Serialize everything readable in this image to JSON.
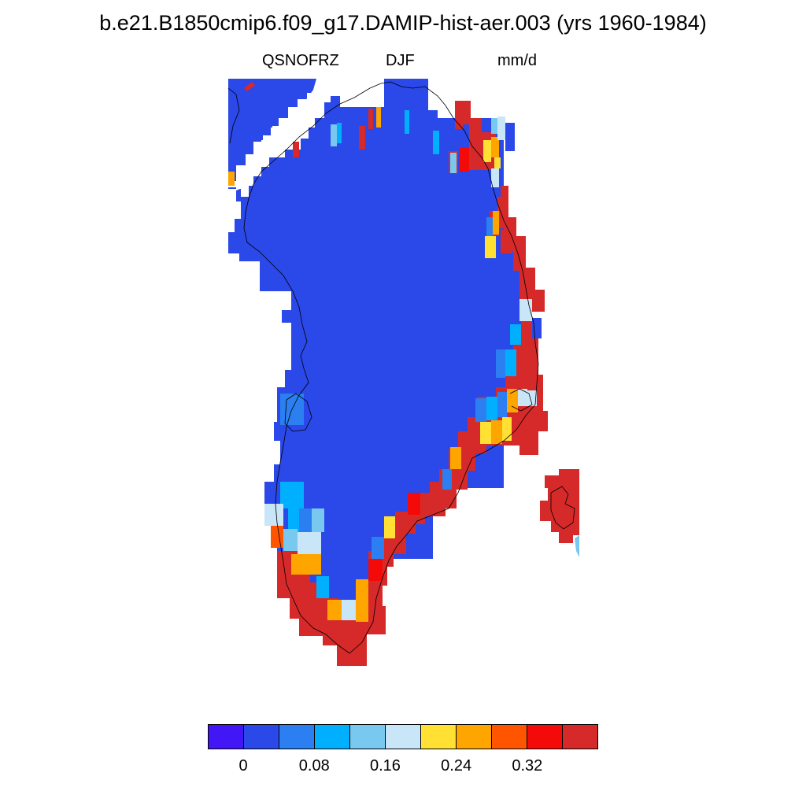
{
  "title": "b.e21.B1850cmip6.f09_g17.DAMIP-hist-aer.003 (yrs 1960-1984)",
  "subtitle": {
    "variable": "QSNOFRZ",
    "season": "DJF",
    "units": "mm/d"
  },
  "colorbar": {
    "colors": [
      "#4216f5",
      "#2b48e8",
      "#2b7ff0",
      "#00b0ff",
      "#78c8f0",
      "#c8e6f8",
      "#ffe033",
      "#ffa500",
      "#ff5500",
      "#f50a0a",
      "#d62a2a"
    ],
    "tick_labels": [
      "0",
      "0.08",
      "0.16",
      "0.24",
      "0.32"
    ]
  },
  "map": {
    "region": "Greenland",
    "base_color": "#2b48e8",
    "high_color": "#d62a2a"
  }
}
